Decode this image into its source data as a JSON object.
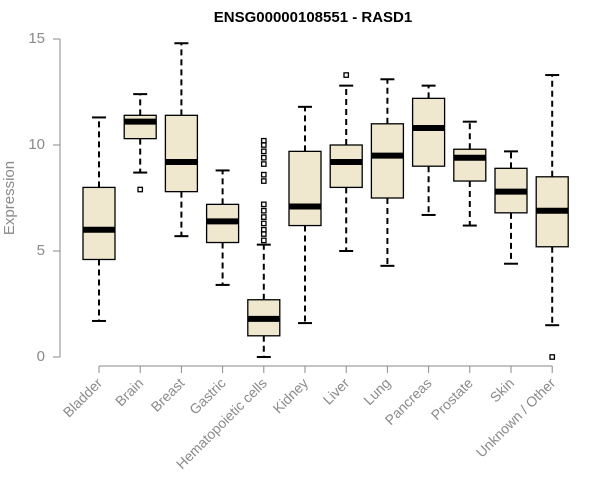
{
  "chart_data": {
    "type": "boxplot",
    "title": "ENSG00000108551 - RASD1",
    "xlabel": "",
    "ylabel": "Expression",
    "ylim": [
      0,
      15
    ],
    "yticks": [
      "0",
      "5",
      "10",
      "15"
    ],
    "grid": false,
    "colors": {
      "box_fill": "#efe8cf",
      "stroke": "#000000",
      "axis": "#8a8a8a"
    },
    "categories": [
      "Bladder",
      "Brain",
      "Breast",
      "Gastric",
      "Hematopoietic cells",
      "Kidney",
      "Liver",
      "Lung",
      "Pancreas",
      "Prostate",
      "Skin",
      "Unknown / Other"
    ],
    "boxes": [
      {
        "category": "Bladder",
        "whisker_low": 1.7,
        "q1": 4.6,
        "median": 6.0,
        "q3": 8.0,
        "whisker_high": 11.3,
        "outliers": []
      },
      {
        "category": "Brain",
        "whisker_low": 8.7,
        "q1": 10.3,
        "median": 11.1,
        "q3": 11.4,
        "whisker_high": 12.4,
        "outliers": [
          7.9
        ]
      },
      {
        "category": "Breast",
        "whisker_low": 5.7,
        "q1": 7.8,
        "median": 9.2,
        "q3": 11.4,
        "whisker_high": 14.8,
        "outliers": []
      },
      {
        "category": "Gastric",
        "whisker_low": 3.4,
        "q1": 5.4,
        "median": 6.4,
        "q3": 7.2,
        "whisker_high": 8.8,
        "outliers": []
      },
      {
        "category": "Hematopoietic cells",
        "whisker_low": 0.0,
        "q1": 1.0,
        "median": 1.8,
        "q3": 2.7,
        "whisker_high": 5.3,
        "outliers": [
          5.5,
          5.8,
          6.0,
          6.3,
          6.6,
          6.9,
          7.2,
          8.3,
          8.6,
          9.1,
          9.4,
          9.7,
          10.0,
          10.2
        ]
      },
      {
        "category": "Kidney",
        "whisker_low": 1.6,
        "q1": 6.2,
        "median": 7.1,
        "q3": 9.7,
        "whisker_high": 11.8,
        "outliers": []
      },
      {
        "category": "Liver",
        "whisker_low": 5.0,
        "q1": 8.0,
        "median": 9.2,
        "q3": 10.0,
        "whisker_high": 12.8,
        "outliers": [
          13.3
        ]
      },
      {
        "category": "Lung",
        "whisker_low": 4.3,
        "q1": 7.5,
        "median": 9.5,
        "q3": 11.0,
        "whisker_high": 13.1,
        "outliers": []
      },
      {
        "category": "Pancreas",
        "whisker_low": 6.7,
        "q1": 9.0,
        "median": 10.8,
        "q3": 12.2,
        "whisker_high": 12.8,
        "outliers": []
      },
      {
        "category": "Prostate",
        "whisker_low": 6.2,
        "q1": 8.3,
        "median": 9.4,
        "q3": 9.8,
        "whisker_high": 11.1,
        "outliers": []
      },
      {
        "category": "Skin",
        "whisker_low": 4.4,
        "q1": 6.8,
        "median": 7.8,
        "q3": 8.9,
        "whisker_high": 9.7,
        "outliers": []
      },
      {
        "category": "Unknown / Other",
        "whisker_low": 1.5,
        "q1": 5.2,
        "median": 6.9,
        "q3": 8.5,
        "whisker_high": 13.3,
        "outliers": [
          0.0
        ]
      }
    ]
  }
}
